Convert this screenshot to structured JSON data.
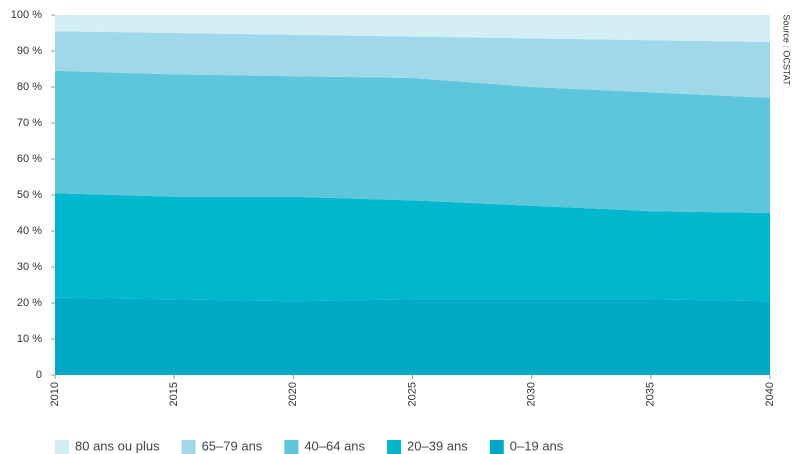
{
  "chart_data": {
    "type": "stacked_area",
    "source": "Source : OCSTAT",
    "x": [
      2010,
      2015,
      2020,
      2025,
      2030,
      2035,
      2040
    ],
    "xlim": [
      2010,
      2040
    ],
    "xticks": [
      2010,
      2015,
      2020,
      2025,
      2030,
      2035,
      2040
    ],
    "ylim": [
      0,
      100
    ],
    "yticks": [
      {
        "value": 0,
        "label": "0"
      },
      {
        "value": 10,
        "label": "10 %"
      },
      {
        "value": 20,
        "label": "20 %"
      },
      {
        "value": 30,
        "label": "30 %"
      },
      {
        "value": 40,
        "label": "40 %"
      },
      {
        "value": 50,
        "label": "50 %"
      },
      {
        "value": 60,
        "label": "60 %"
      },
      {
        "value": 70,
        "label": "70 %"
      },
      {
        "value": 80,
        "label": "80 %"
      },
      {
        "value": 90,
        "label": "90 %"
      },
      {
        "value": 100,
        "label": "100 %"
      }
    ],
    "series": [
      {
        "name": "0–19 ans",
        "color": "#00a9c5",
        "values": [
          21.5,
          21,
          20.5,
          21,
          21,
          21,
          20.5
        ]
      },
      {
        "name": "20–39 ans",
        "color": "#00b8cd",
        "values": [
          29,
          28.5,
          29,
          27.5,
          26,
          24.5,
          24.5
        ]
      },
      {
        "name": "40–64 ans",
        "color": "#5ec6da",
        "values": [
          34,
          34,
          33.5,
          34,
          33,
          33,
          32
        ]
      },
      {
        "name": "65–79 ans",
        "color": "#9fd9e9",
        "values": [
          11,
          11.5,
          11.5,
          11.5,
          13.5,
          14.5,
          15.5
        ]
      },
      {
        "name": "80 ans ou plus",
        "color": "#d3eef5",
        "values": [
          4.5,
          5,
          5.5,
          6,
          6.5,
          7,
          7.5
        ]
      }
    ]
  }
}
